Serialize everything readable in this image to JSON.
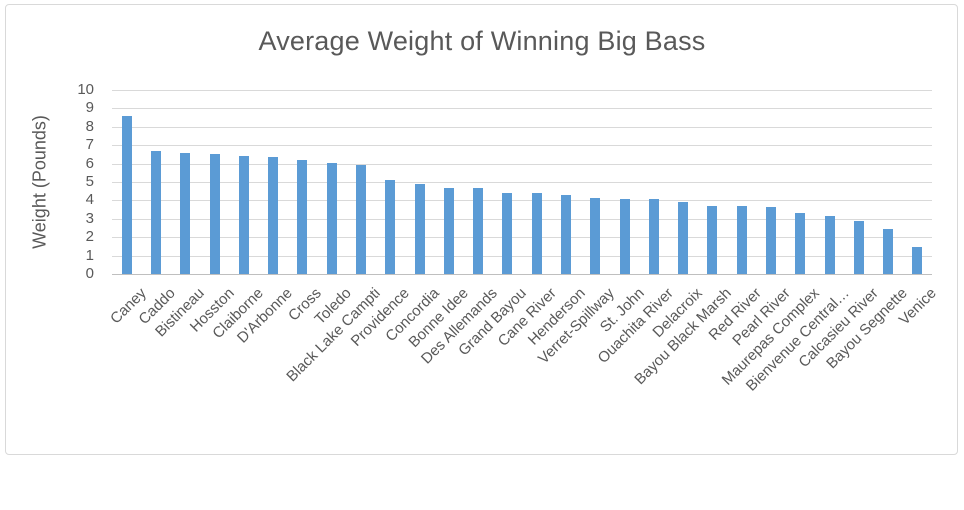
{
  "window": {
    "background": "#FFFFFF",
    "border_color": "#D9D9D9"
  },
  "chart_data": {
    "type": "bar",
    "title": "Average Weight of Winning Big Bass",
    "ylabel": "Weight (Pounds)",
    "xlabel": "",
    "ylim": [
      0,
      10
    ],
    "ytick_step": 1,
    "grid": true,
    "legend": false,
    "bar_color": "#5B9BD5",
    "gridline_color": "#D9D9D9",
    "axis_line_color": "#BFBFBF",
    "text_color": "#595959",
    "categories": [
      "Caney",
      "Caddo",
      "Bistineau",
      "Hosston",
      "Claiborne",
      "D'Arbonne",
      "Cross",
      "Toledo",
      "Black Lake Campti",
      "Providence",
      "Concordia",
      "Bonne Idee",
      "Des Allemands",
      "Grand Bayou",
      "Cane River",
      "Henderson",
      "Verret-Spillway",
      "St. John",
      "Ouachita River",
      "Delacroix",
      "Bayou Black Marsh",
      "Red River",
      "Pearl River",
      "Maurepas Complex",
      "Bienvenue Central…",
      "Calcasieu River",
      "Bayou Segnette",
      "Venice"
    ],
    "values": [
      8.6,
      6.7,
      6.6,
      6.5,
      6.4,
      6.35,
      6.2,
      6.05,
      5.95,
      5.1,
      4.9,
      4.65,
      4.65,
      4.4,
      4.4,
      4.3,
      4.15,
      4.1,
      4.05,
      3.9,
      3.7,
      3.7,
      3.65,
      3.3,
      3.15,
      2.9,
      2.45,
      1.45
    ]
  }
}
